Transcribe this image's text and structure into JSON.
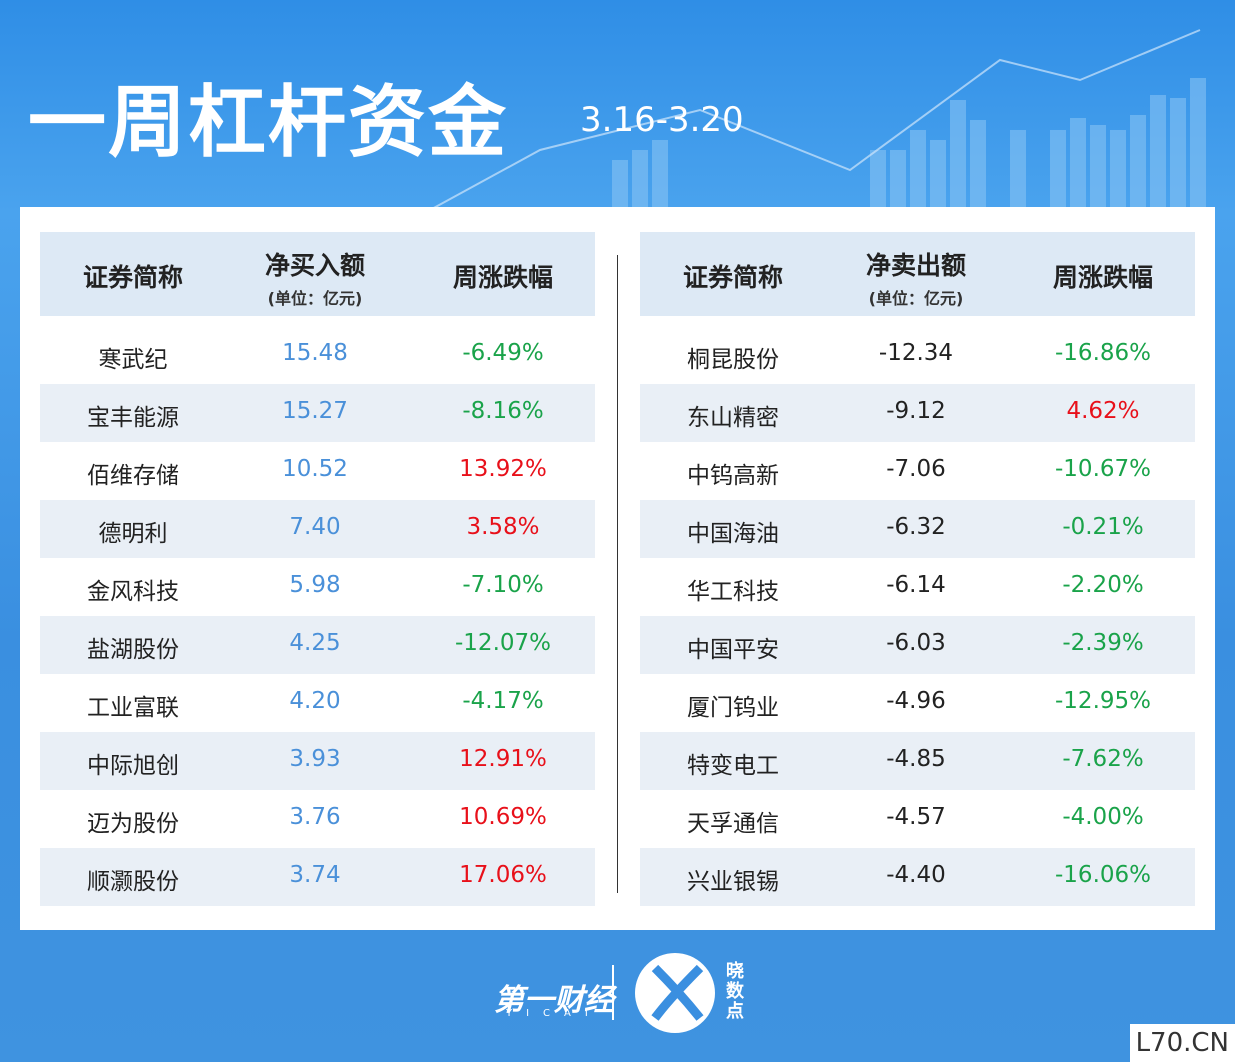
{
  "header": {
    "title": "一周杠杆资金",
    "date": "3.16-3.20"
  },
  "tables": [
    {
      "headers": [
        "证券简称",
        "净买入额",
        "周涨跌幅"
      ],
      "unit": "(单位：亿元)",
      "rows": [
        [
          "寒武纪",
          "15.48",
          "-6.49%"
        ],
        [
          "宝丰能源",
          "15.27",
          "-8.16%"
        ],
        [
          "佰维存储",
          "10.52",
          "13.92%"
        ],
        [
          "德明利",
          "7.40",
          "3.58%"
        ],
        [
          "金风科技",
          "5.98",
          "-7.10%"
        ],
        [
          "盐湖股份",
          "4.25",
          "-12.07%"
        ],
        [
          "工业富联",
          "4.20",
          "-4.17%"
        ],
        [
          "中际旭创",
          "3.93",
          "12.91%"
        ],
        [
          "迈为股份",
          "3.76",
          "10.69%"
        ],
        [
          "顺灏股份",
          "3.74",
          "17.06%"
        ]
      ]
    },
    {
      "headers": [
        "证券简称",
        "净卖出额",
        "周涨跌幅"
      ],
      "unit": "(单位：亿元)",
      "rows": [
        [
          "桐昆股份",
          "-12.34",
          "-16.86%"
        ],
        [
          "东山精密",
          "-9.12",
          "4.62%"
        ],
        [
          "中钨高新",
          "-7.06",
          "-10.67%"
        ],
        [
          "中国海油",
          "-6.32",
          "-0.21%"
        ],
        [
          "华工科技",
          "-6.14",
          "-2.20%"
        ],
        [
          "中国平安",
          "-6.03",
          "-2.39%"
        ],
        [
          "厦门钨业",
          "-4.96",
          "-12.95%"
        ],
        [
          "特变电工",
          "-4.85",
          "-7.62%"
        ],
        [
          "天孚通信",
          "-4.57",
          "-4.00%"
        ],
        [
          "兴业银锡",
          "-4.40",
          "-16.06%"
        ]
      ]
    }
  ],
  "footer": {
    "brand": "第一财经",
    "brand_en": "YICAI",
    "sub": "晓数点",
    "watermark": "L70.CN"
  }
}
